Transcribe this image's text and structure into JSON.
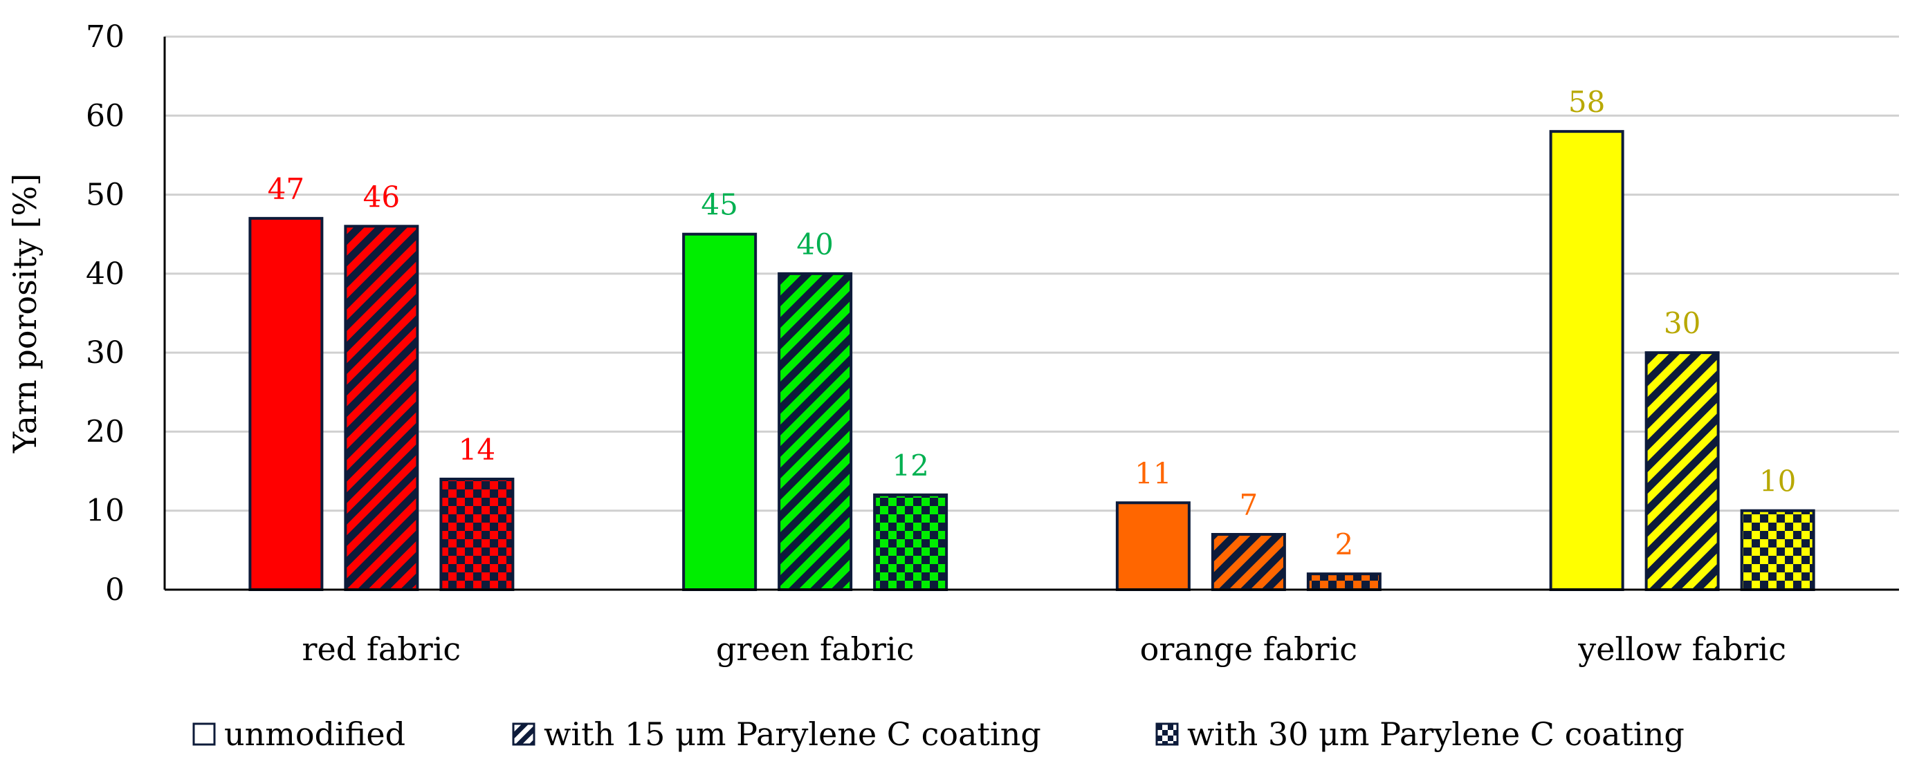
{
  "chart_data": {
    "type": "bar",
    "categories": [
      "red fabric",
      "green fabric",
      "orange fabric",
      "yellow fabric"
    ],
    "category_colors": [
      "#ff0000",
      "#00ee00",
      "#ff6600",
      "#ffff00"
    ],
    "label_colors": [
      "#ff0000",
      "#00b050",
      "#ff6600",
      "#b8a800"
    ],
    "series": [
      {
        "name": "unmodified",
        "pattern": "solid",
        "values": [
          47,
          45,
          11,
          58
        ]
      },
      {
        "name": "with 15 μm Parylene C coating",
        "pattern": "diagonal-stripes",
        "values": [
          46,
          40,
          7,
          30
        ]
      },
      {
        "name": "with 30 μm Parylene C coating",
        "pattern": "checkerboard",
        "values": [
          14,
          12,
          2,
          10
        ]
      }
    ],
    "xlabel": "",
    "ylabel": "Yarn porosity [%]",
    "ylim": [
      0,
      70
    ],
    "yticks": [
      0,
      10,
      20,
      30,
      40,
      50,
      60,
      70
    ],
    "grid": true,
    "legend_position": "bottom",
    "bar_outline_color": "#0d1b3a",
    "grid_color": "#d0d0d0"
  }
}
